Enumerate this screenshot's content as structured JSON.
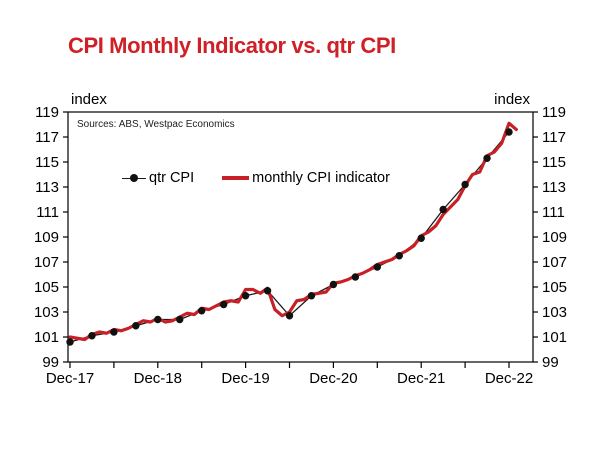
{
  "title": "CPI Monthly Indicator vs. qtr CPI",
  "axis_unit_left": "index",
  "axis_unit_right": "index",
  "source_note": "Sources: ABS, Westpac Economics",
  "legend": {
    "qtr_label": "qtr CPI",
    "monthly_label": "monthly CPI indicator"
  },
  "colors": {
    "title_red": "#d02027",
    "monthly_line_red": "#c72026",
    "qtr_line_black": "#1a1a1a",
    "qtr_dot_black": "#111111",
    "axis_black": "#000000"
  },
  "chart_data": {
    "type": "line",
    "title": "CPI Monthly Indicator vs. qtr CPI",
    "xlabel": "",
    "ylabel": "index",
    "ylim": [
      99,
      119
    ],
    "y_ticks": [
      99,
      101,
      103,
      105,
      107,
      109,
      111,
      113,
      115,
      117,
      119
    ],
    "y_tick_sides": "both",
    "x_unit": "months since Dec-17",
    "x_axis_range_months": [
      0,
      60
    ],
    "x_minor_tick_months": [
      0,
      6,
      12,
      18,
      24,
      30,
      36,
      42,
      48,
      54,
      60
    ],
    "x_label_months": [
      0,
      12,
      24,
      36,
      48,
      60
    ],
    "x_tick_labels": [
      "Dec-17",
      "Dec-18",
      "Dec-19",
      "Dec-20",
      "Dec-21",
      "Dec-22"
    ],
    "grid": false,
    "legend_position": "upper-left-inside",
    "series": [
      {
        "name": "qtr CPI",
        "style": "thin black line with filled circle markers",
        "color": "#1a1a1a",
        "x_months": [
          0,
          3,
          6,
          9,
          12,
          15,
          18,
          21,
          24,
          27,
          30,
          33,
          36,
          39,
          42,
          45,
          48,
          51,
          54,
          57,
          60
        ],
        "values": [
          100.6,
          101.1,
          101.4,
          101.9,
          102.4,
          102.4,
          103.1,
          103.6,
          104.3,
          104.7,
          102.7,
          104.3,
          105.2,
          105.8,
          106.6,
          107.5,
          108.9,
          111.2,
          113.2,
          115.3,
          117.4
        ]
      },
      {
        "name": "monthly CPI indicator",
        "style": "thick red line",
        "color": "#c72026",
        "x_months": [
          0,
          1,
          2,
          3,
          4,
          5,
          6,
          7,
          8,
          9,
          10,
          11,
          12,
          13,
          14,
          15,
          16,
          17,
          18,
          19,
          20,
          21,
          22,
          23,
          24,
          25,
          26,
          27,
          28,
          29,
          30,
          31,
          32,
          33,
          34,
          35,
          36,
          37,
          38,
          39,
          40,
          41,
          42,
          43,
          44,
          45,
          46,
          47,
          48,
          49,
          50,
          51,
          52,
          53,
          54,
          55,
          56,
          57,
          58,
          59,
          60,
          61
        ],
        "values": [
          101.0,
          100.9,
          100.8,
          101.2,
          101.4,
          101.3,
          101.6,
          101.5,
          101.7,
          102.0,
          102.3,
          102.2,
          102.5,
          102.2,
          102.3,
          102.6,
          102.9,
          102.8,
          103.3,
          103.2,
          103.5,
          103.8,
          103.9,
          103.8,
          104.8,
          104.8,
          104.5,
          104.9,
          103.2,
          102.7,
          103.0,
          103.9,
          104.0,
          104.4,
          104.5,
          104.6,
          105.3,
          105.4,
          105.6,
          105.9,
          106.1,
          106.4,
          106.8,
          107.0,
          107.2,
          107.6,
          107.9,
          108.3,
          109.1,
          109.4,
          109.9,
          110.8,
          111.4,
          112.0,
          113.1,
          114.0,
          114.2,
          115.5,
          115.8,
          116.5,
          118.1,
          117.6
        ]
      }
    ]
  }
}
